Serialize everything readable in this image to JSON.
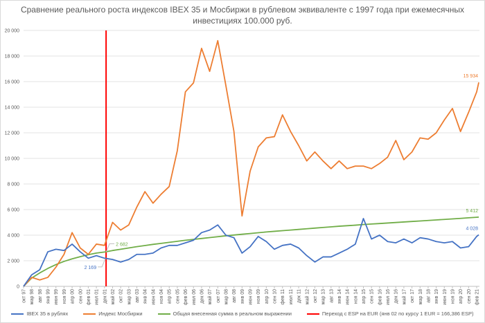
{
  "chart_data": {
    "type": "line",
    "title": "Сравнение реального роста индексов IBEX 35 и Мосбиржи в рублевом эквиваленте с 1997 года при ежемесячных инвестициях 100.000 руб.",
    "ylim": [
      0,
      20000
    ],
    "yticks": [
      "0",
      "2 000",
      "4 000",
      "6 000",
      "8 000",
      "10 000",
      "12 000",
      "14 000",
      "16 000",
      "18 000",
      "20 000"
    ],
    "grid": true,
    "legend_position": "bottom",
    "categories": [
      "окт 97",
      "мар 98",
      "авг 98",
      "янв 99",
      "июн 99",
      "ноя 99",
      "апр 00",
      "сен 00",
      "фев 01",
      "июл 01",
      "дек 01",
      "май 02",
      "окт 02",
      "мар 03",
      "авг 03",
      "янв 04",
      "июн 04",
      "ноя 04",
      "апр 05",
      "сен 05",
      "фев 06",
      "июл 06",
      "дек 06",
      "май 07",
      "окт 07",
      "мар 08",
      "авг 08",
      "янв 09",
      "июн 09",
      "ноя 09",
      "апр 10",
      "сен 10",
      "фев 11",
      "июл 11",
      "дек 11",
      "май 12",
      "окт 12",
      "мар 13",
      "авг 13",
      "янв 14",
      "июн 14",
      "ноя 14",
      "апр 15",
      "сен 15",
      "фев 16",
      "июл 16",
      "дек 16",
      "май 17",
      "окт 17",
      "мар 18",
      "авг 18",
      "янв 19",
      "июн 19",
      "ноя 19",
      "апр 20",
      "сен 20",
      "фев 21"
    ],
    "series": [
      {
        "name": "IBEX 35 в рублях",
        "color": "#4472c4",
        "end_label": "4 028",
        "values": [
          0,
          900,
          1300,
          2700,
          2900,
          2800,
          3300,
          2700,
          2200,
          2400,
          2200,
          2100,
          1900,
          2100,
          2500,
          2500,
          2600,
          3000,
          3200,
          3200,
          3400,
          3600,
          4200,
          4400,
          4800,
          4000,
          3800,
          2600,
          3100,
          3900,
          3500,
          2900,
          3200,
          3300,
          3000,
          2400,
          1900,
          2300,
          2300,
          2600,
          2900,
          3300,
          5300,
          3700,
          4000,
          3500,
          3400,
          3700,
          3400,
          3800,
          3700,
          3500,
          3400,
          3500,
          3000,
          3100,
          3900
        ],
        "end_value": 4028
      },
      {
        "name": "Индекс Мосбиржи",
        "color": "#ed7d31",
        "end_label": "15 934",
        "values": [
          0,
          700,
          500,
          700,
          1500,
          2500,
          4200,
          3000,
          2500,
          3300,
          3200,
          5000,
          4400,
          4800,
          6200,
          7400,
          6500,
          7200,
          7800,
          10600,
          15200,
          15900,
          18600,
          16800,
          19200,
          15700,
          12100,
          5500,
          9000,
          10900,
          11600,
          11700,
          13400,
          12100,
          11000,
          9800,
          10500,
          9800,
          9200,
          9800,
          9200,
          9400,
          9400,
          9200,
          9600,
          10100,
          11400,
          9900,
          10500,
          11600,
          11500,
          12000,
          13000,
          13900,
          12100,
          13600,
          15200
        ],
        "end_value": 15934
      },
      {
        "name": "Общая внесенная сумма в реальном выражении",
        "color": "#70ad47",
        "end_label": "5 412",
        "values": [
          0,
          650,
          1050,
          1400,
          1700,
          1950,
          2150,
          2320,
          2470,
          2600,
          2682,
          2800,
          2900,
          3000,
          3100,
          3190,
          3280,
          3360,
          3440,
          3520,
          3600,
          3670,
          3740,
          3810,
          3880,
          3950,
          4010,
          4070,
          4130,
          4190,
          4250,
          4300,
          4350,
          4400,
          4450,
          4500,
          4550,
          4600,
          4650,
          4700,
          4740,
          4780,
          4830,
          4870,
          4910,
          4950,
          4990,
          5030,
          5070,
          5110,
          5150,
          5190,
          5230,
          5270,
          5310,
          5360,
          5400
        ],
        "end_value": 5412
      }
    ],
    "vertical_marker": {
      "name": "Переход с ESP на EUR (янв 02 по курсу 1 EUR = 166,386 ESP)",
      "color": "#ff0000",
      "at": "янв 02"
    },
    "annotations": [
      {
        "label": "2 682",
        "series": "Общая внесенная сумма в реальном выражении",
        "at": "янв 02",
        "value": 2682
      },
      {
        "label": "2 169",
        "series": "IBEX 35 в рублях",
        "at": "янв 02",
        "value": 2169
      }
    ]
  }
}
